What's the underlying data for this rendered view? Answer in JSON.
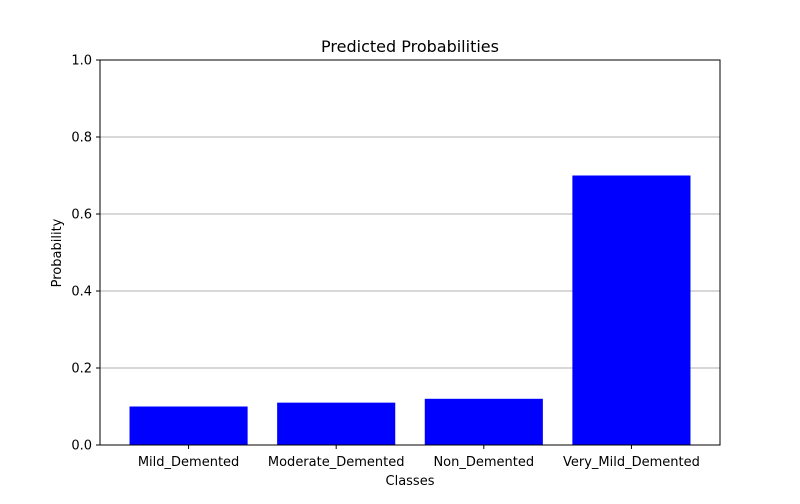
{
  "chart_data": {
    "type": "bar",
    "title": "Predicted Probabilities",
    "xlabel": "Classes",
    "ylabel": "Probability",
    "categories": [
      "Mild_Demented",
      "Moderate_Demented",
      "Non_Demented",
      "Very_Mild_Demented"
    ],
    "values": [
      0.1,
      0.11,
      0.12,
      0.7
    ],
    "ylim": [
      0.0,
      1.0
    ],
    "yticks": [
      0.0,
      0.2,
      0.4,
      0.6,
      0.8,
      1.0
    ],
    "ytick_labels": [
      "0.0",
      "0.2",
      "0.4",
      "0.6",
      "0.8",
      "1.0"
    ],
    "grid": "y-axis",
    "bar_color": "#0000ff",
    "grid_color": "#b0b0b0"
  }
}
